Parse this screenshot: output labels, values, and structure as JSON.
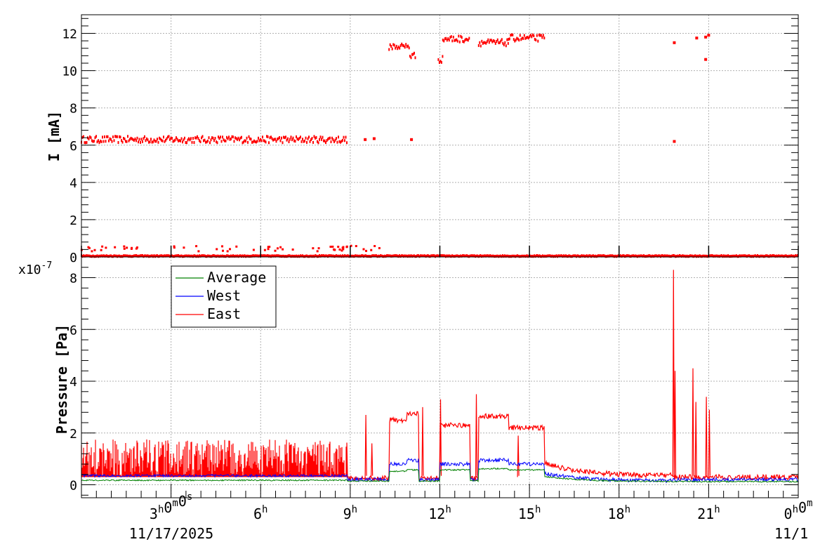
{
  "chart_data": [
    {
      "type": "scatter",
      "title": "",
      "xlabel": "",
      "ylabel": "I [mA]",
      "ylim": [
        0,
        13
      ],
      "xlim_hours": [
        0,
        24
      ],
      "x_ticks": [
        {
          "label": "3",
          "sup": "h",
          "label2": "0",
          "sup2": "m",
          "label3": "0",
          "sup3": "s",
          "hour": 3
        },
        {
          "label": "6",
          "sup": "h",
          "hour": 6
        },
        {
          "label": "9",
          "sup": "h",
          "hour": 9
        },
        {
          "label": "12",
          "sup": "h",
          "hour": 12
        },
        {
          "label": "15",
          "sup": "h",
          "hour": 15
        },
        {
          "label": "18",
          "sup": "h",
          "hour": 18
        },
        {
          "label": "21",
          "sup": "h",
          "hour": 21
        },
        {
          "label": "0",
          "sup": "h",
          "label2": "0",
          "sup2": "m",
          "hour": 24
        }
      ],
      "y_ticks": [
        "0",
        "2",
        "4",
        "6",
        "8",
        "10",
        "12"
      ],
      "grid": true,
      "series": [
        {
          "color": "#ff0000",
          "segments": [
            {
              "x": [
                0.0,
                8.9
              ],
              "y": 6.3
            },
            {
              "x": [
                0.0,
                24.0
              ],
              "y": 0.05
            },
            {
              "x": [
                10.3,
                11.0
              ],
              "y": 11.3
            },
            {
              "x": [
                11.0,
                11.2
              ],
              "y": 10.8
            },
            {
              "x": [
                11.95,
                12.1
              ],
              "y": 10.6
            },
            {
              "x": [
                12.1,
                13.0
              ],
              "y": 11.7
            },
            {
              "x": [
                13.3,
                14.3
              ],
              "y": 11.5
            },
            {
              "x": [
                14.3,
                15.5
              ],
              "y": 11.75
            }
          ],
          "points": [
            {
              "x": 9.5,
              "y": 6.3
            },
            {
              "x": 9.8,
              "y": 6.35
            },
            {
              "x": 11.05,
              "y": 6.3
            },
            {
              "x": 19.85,
              "y": 11.5
            },
            {
              "x": 19.85,
              "y": 6.2
            },
            {
              "x": 20.6,
              "y": 11.75
            },
            {
              "x": 20.9,
              "y": 11.8
            },
            {
              "x": 20.9,
              "y": 10.6
            },
            {
              "x": 21.0,
              "y": 11.9
            }
          ]
        }
      ]
    },
    {
      "type": "line",
      "title": "",
      "xlabel": "",
      "ylabel": "Pressure [Pa]",
      "y_exponent": "x10",
      "y_exponent_power": "-7",
      "ylim": [
        -0.5,
        8.8
      ],
      "y_ticks": [
        "0",
        "2",
        "4",
        "6",
        "8"
      ],
      "x_date_label_left": "11/17/2025",
      "x_date_label_right": "11/1",
      "grid": true,
      "legend": {
        "position": "top-left",
        "entries": [
          "Average",
          "West",
          "East"
        ]
      },
      "series": [
        {
          "name": "Average",
          "color": "#008000",
          "baseline": 0.15
        },
        {
          "name": "West",
          "color": "#0000ff",
          "baseline": 0.3
        },
        {
          "name": "East",
          "color": "#ff0000",
          "band_0_9h": [
            0.3,
            1.75
          ],
          "peak": 8.3
        }
      ]
    }
  ]
}
